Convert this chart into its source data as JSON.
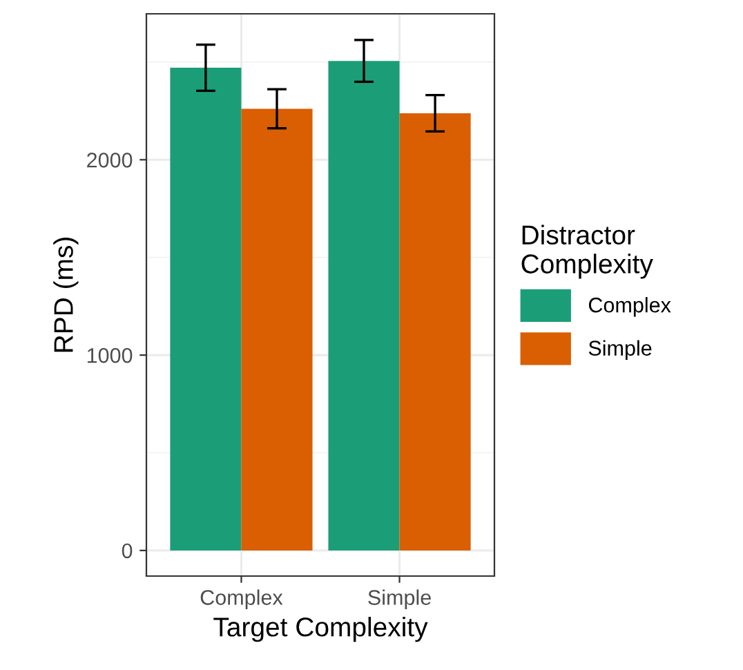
{
  "chart_data": {
    "type": "bar",
    "xlabel": "Target Complexity",
    "ylabel": "RPD (ms)",
    "legend_title": "Distractor\nComplexity",
    "categories": [
      "Complex",
      "Simple"
    ],
    "series": [
      {
        "name": "Complex",
        "color": "#1b9e77",
        "values": [
          2471,
          2506
        ],
        "errors": [
          118,
          107
        ]
      },
      {
        "name": "Simple",
        "color": "#d95f02",
        "values": [
          2261,
          2238
        ],
        "errors": [
          100,
          93
        ]
      }
    ],
    "ylim": [
      -131,
      2747
    ],
    "yticks": [
      0,
      1000,
      2000
    ],
    "grid": true,
    "legend": "right"
  }
}
